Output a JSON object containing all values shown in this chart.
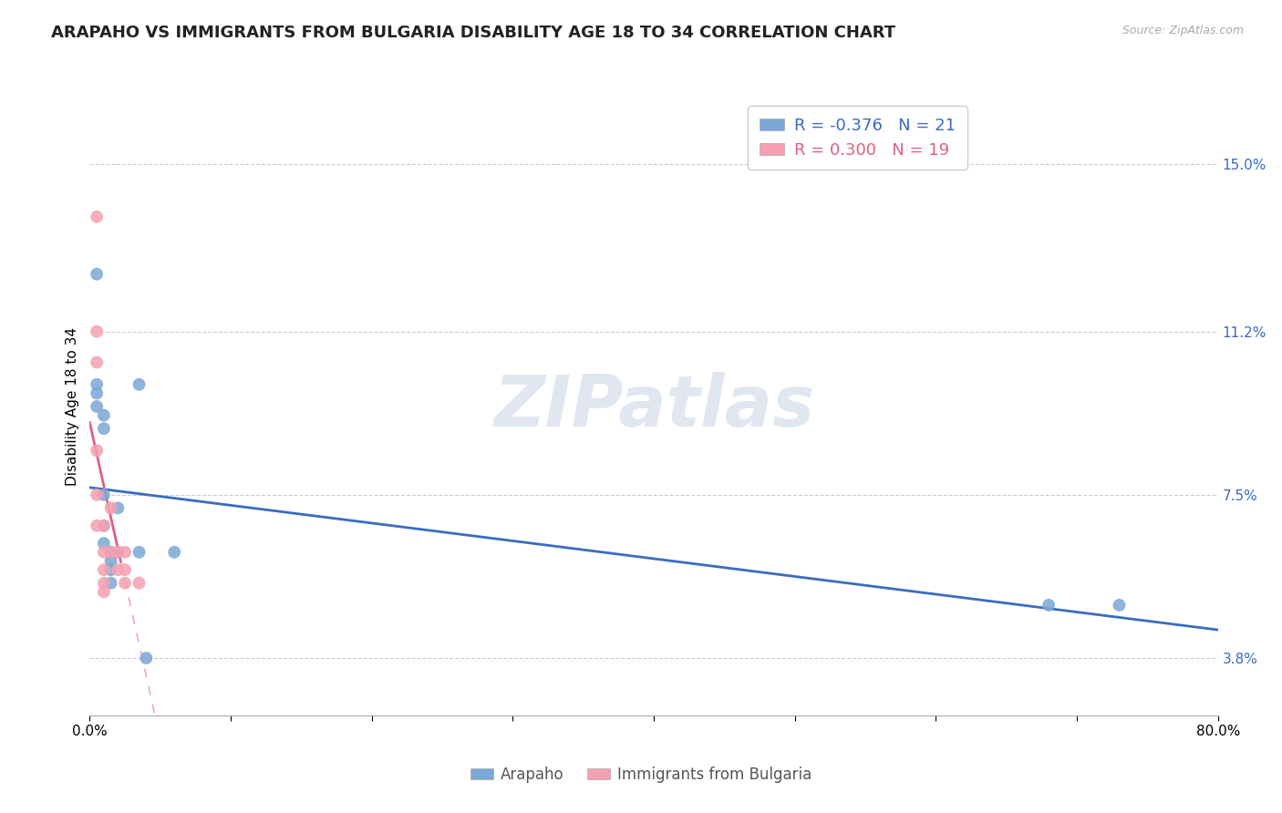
{
  "title": "ARAPAHO VS IMMIGRANTS FROM BULGARIA DISABILITY AGE 18 TO 34 CORRELATION CHART",
  "source": "Source: ZipAtlas.com",
  "ylabel": "Disability Age 18 to 34",
  "ytick_labels": [
    "3.8%",
    "7.5%",
    "11.2%",
    "15.0%"
  ],
  "ytick_values": [
    0.038,
    0.075,
    0.112,
    0.15
  ],
  "xlim": [
    0.0,
    0.8
  ],
  "ylim": [
    0.025,
    0.165
  ],
  "legend_blue_r": "-0.376",
  "legend_blue_n": "21",
  "legend_pink_r": "0.300",
  "legend_pink_n": "19",
  "arapaho_x": [
    0.005,
    0.005,
    0.005,
    0.005,
    0.01,
    0.01,
    0.01,
    0.01,
    0.01,
    0.015,
    0.015,
    0.015,
    0.015,
    0.02,
    0.02,
    0.035,
    0.035,
    0.04,
    0.06,
    0.68,
    0.73
  ],
  "arapaho_y": [
    0.125,
    0.1,
    0.098,
    0.095,
    0.093,
    0.09,
    0.075,
    0.068,
    0.064,
    0.06,
    0.058,
    0.062,
    0.055,
    0.072,
    0.062,
    0.1,
    0.062,
    0.038,
    0.062,
    0.05,
    0.05
  ],
  "bulgaria_x": [
    0.005,
    0.005,
    0.005,
    0.005,
    0.005,
    0.005,
    0.01,
    0.01,
    0.01,
    0.01,
    0.01,
    0.015,
    0.015,
    0.02,
    0.02,
    0.025,
    0.025,
    0.025,
    0.035
  ],
  "bulgaria_y": [
    0.138,
    0.112,
    0.105,
    0.085,
    0.075,
    0.068,
    0.068,
    0.062,
    0.058,
    0.055,
    0.053,
    0.072,
    0.062,
    0.062,
    0.058,
    0.062,
    0.058,
    0.055,
    0.055
  ],
  "blue_color": "#7ba7d4",
  "pink_color": "#f4a0b0",
  "blue_line_color": "#3a6bbf",
  "pink_line_color": "#e06080",
  "background_color": "#ffffff",
  "grid_color": "#cccccc",
  "watermark": "ZIPatlas",
  "title_fontsize": 13,
  "axis_label_fontsize": 11,
  "tick_fontsize": 11
}
